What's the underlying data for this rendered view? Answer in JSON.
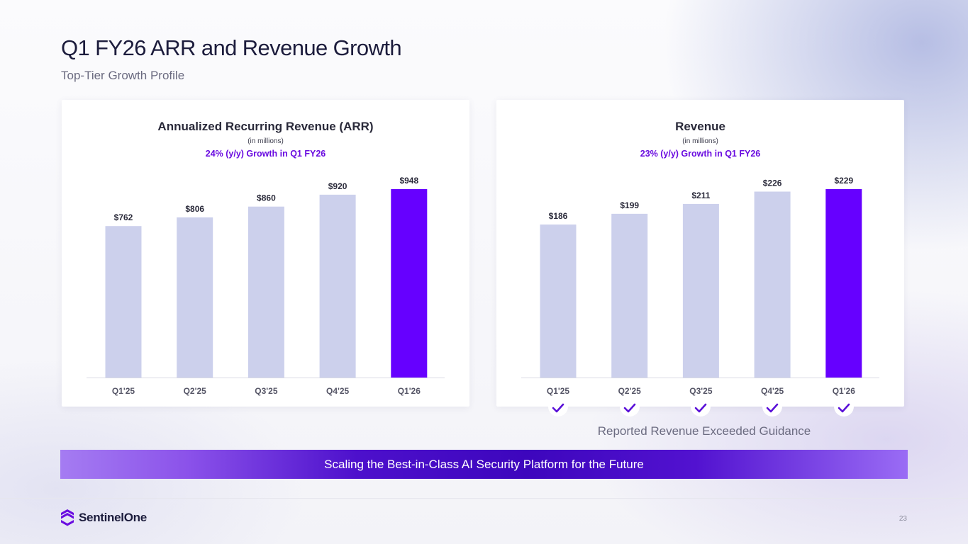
{
  "header": {
    "title": "Q1 FY26 ARR and Revenue Growth",
    "subtitle": "Top-Tier Growth Profile"
  },
  "colors": {
    "bar_default": "#ccd0ec",
    "bar_highlight": "#6600ff",
    "growth_text": "#6a0ce0",
    "banner_mid": "#3d06bd"
  },
  "chart_data": [
    {
      "type": "bar",
      "title": "Annualized Recurring Revenue (ARR)",
      "unit_note": "(in millions)",
      "growth_note": "24% (y/y) Growth in Q1 FY26",
      "categories": [
        "Q1'25",
        "Q2'25",
        "Q3'25",
        "Q4'25",
        "Q1'26"
      ],
      "values": [
        762,
        806,
        860,
        920,
        948
      ],
      "value_labels": [
        "$762",
        "$806",
        "$860",
        "$920",
        "$948"
      ],
      "highlight_index": 4,
      "grid": false,
      "ylim": [
        0,
        948
      ]
    },
    {
      "type": "bar",
      "title": "Revenue",
      "unit_note": "(in millions)",
      "growth_note": "23% (y/y) Growth in Q1 FY26",
      "categories": [
        "Q1'25",
        "Q2'25",
        "Q3'25",
        "Q4'25",
        "Q1'26"
      ],
      "values": [
        186,
        199,
        211,
        226,
        229
      ],
      "value_labels": [
        "$186",
        "$199",
        "$211",
        "$226",
        "$229"
      ],
      "highlight_index": 4,
      "grid": false,
      "ylim": [
        0,
        229
      ]
    }
  ],
  "guidance": {
    "icon": "checkmark-icon",
    "label": "Reported Revenue Exceeded Guidance"
  },
  "banner": {
    "text": "Scaling the Best-in-Class AI Security Platform for the Future"
  },
  "footer": {
    "brand": "SentinelOne",
    "page_number": "23"
  }
}
